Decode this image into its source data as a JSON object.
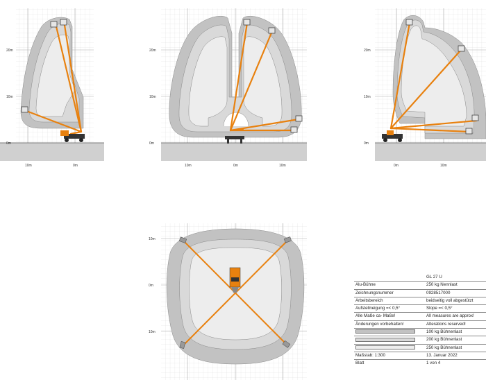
{
  "views": [
    {
      "id": "left",
      "axis_labels": [
        "20m",
        "10m",
        "0m"
      ],
      "tick_labels": [
        "10m",
        "0m"
      ]
    },
    {
      "id": "center",
      "axis_labels": [
        "20m",
        "10m",
        "0m"
      ],
      "tick_labels": [
        "10m",
        "0m",
        "10m"
      ]
    },
    {
      "id": "right",
      "axis_labels": [
        "20m",
        "10m",
        "0m"
      ],
      "tick_labels": [
        "0m",
        "10m"
      ]
    },
    {
      "id": "top",
      "axis_labels": [
        "10m",
        "0m",
        "10m"
      ]
    }
  ],
  "colors": {
    "zone_100": "#c2c2c2",
    "zone_200": "#d9d9d9",
    "zone_250": "#ededed",
    "boom": "#e8810f",
    "chassis": "#333333",
    "ground": "#d0d0d0",
    "grid": "#cfcfcf"
  },
  "title_block": {
    "rows": [
      {
        "left": "",
        "right": "GL 27 U"
      },
      {
        "left": "Alu-Bühne",
        "right": "250 kg Nennlast"
      },
      {
        "left": "Zeichnungsnummer",
        "right": "0928517000"
      },
      {
        "left": "Arbeitsbereich",
        "right": "beidseitig voll abgestützt"
      },
      {
        "left": "Aufstellneigung =< 0,5°",
        "right": "Slope =< 0,5°"
      },
      {
        "left": "Alle Maße ca- Maße!",
        "right": "All measures are approx!"
      },
      {
        "left": "Änderungen vorbehalten!",
        "right": "Alterations reserved!"
      }
    ],
    "legend": [
      {
        "label": "100 kg Bühnenlast",
        "color": "#c2c2c2"
      },
      {
        "label": "200 kg Bühnenlast",
        "color": "#d9d9d9"
      },
      {
        "label": "250 kg Bühnenlast",
        "color": "#ededed"
      }
    ],
    "footer": [
      {
        "left": "Maßstab: 1:300",
        "right": "13. Januar 2022"
      },
      {
        "left": "Blatt",
        "right": "1 von 4"
      }
    ]
  }
}
